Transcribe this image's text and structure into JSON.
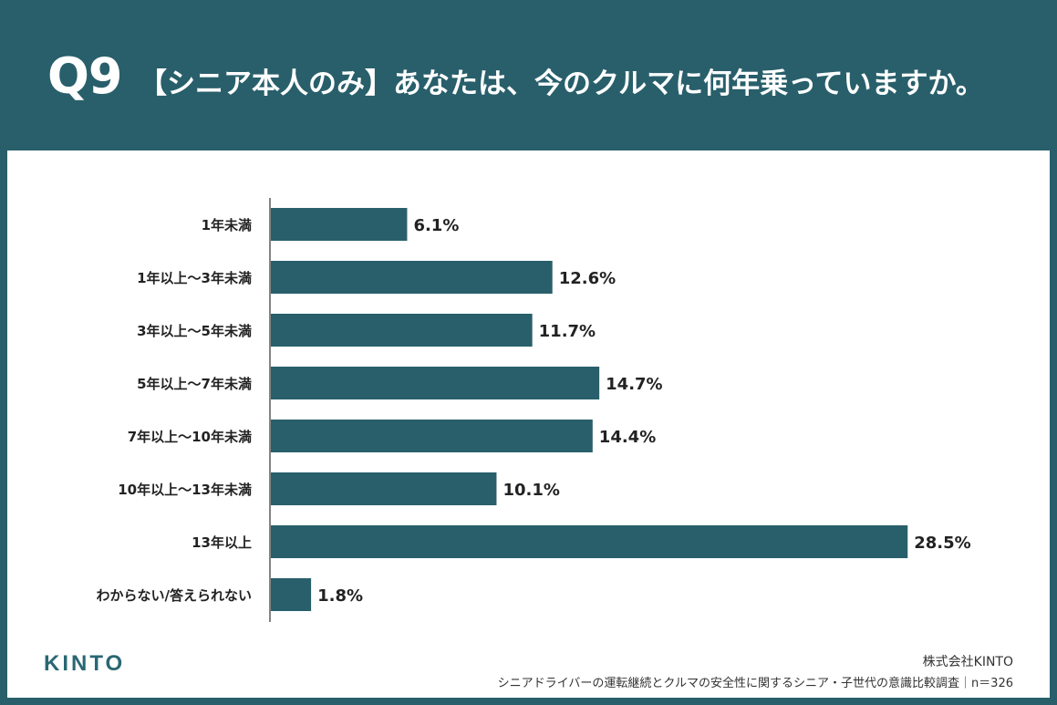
{
  "header": {
    "question_number": "Q9",
    "question_text": "【シニア本人のみ】あなたは、今のクルマに何年乗っていますか。"
  },
  "chart_data": {
    "type": "bar",
    "orientation": "horizontal",
    "categories": [
      "1年未満",
      "1年以上〜3年未満",
      "3年以上〜5年未満",
      "5年以上〜7年未満",
      "7年以上〜10年未満",
      "10年以上〜13年未満",
      "13年以上",
      "わからない/答えられない"
    ],
    "values": [
      6.1,
      12.6,
      11.7,
      14.7,
      14.4,
      10.1,
      28.5,
      1.8
    ],
    "value_labels": [
      "6.1%",
      "12.6%",
      "11.7%",
      "14.7%",
      "14.4%",
      "10.1%",
      "28.5%",
      "1.8%"
    ],
    "unit": "%",
    "xlim": [
      0,
      30
    ],
    "bar_color": "#285f6b",
    "grid": false,
    "legend": "none"
  },
  "footer": {
    "logo": "KINTO",
    "company": "株式会社KINTO",
    "survey": "シニアドライバーの運転継続とクルマの安全性に関するシニア・子世代の意識比較調査｜n＝326"
  },
  "colors": {
    "brand": "#285f6b",
    "background": "#ffffff",
    "text": "#222222"
  }
}
